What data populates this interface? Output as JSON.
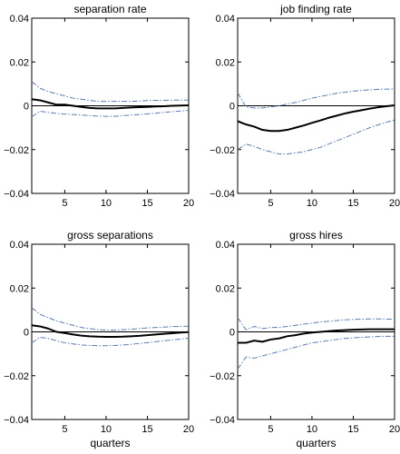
{
  "chart_data": [
    {
      "type": "line",
      "title": "separation rate",
      "xlabel": "",
      "ylabel": "",
      "xlim": [
        1,
        20
      ],
      "ylim": [
        -0.04,
        0.04
      ],
      "xticks": [
        5,
        10,
        15,
        20
      ],
      "yticks": [
        -0.04,
        -0.02,
        0,
        0.02,
        0.04
      ],
      "ytick_labels": [
        "−0.04",
        "−0.02",
        "0",
        "0.02",
        "0.04"
      ],
      "zero_line": true,
      "x": [
        1,
        2,
        3,
        4,
        5,
        6,
        7,
        8,
        9,
        10,
        11,
        12,
        13,
        14,
        15,
        16,
        17,
        18,
        19,
        20
      ],
      "series": [
        {
          "role": "estimate",
          "values": [
            0.003,
            0.0025,
            0.0015,
            0.0005,
            0.0005,
            0.0,
            -0.0005,
            -0.001,
            -0.0012,
            -0.0012,
            -0.0012,
            -0.001,
            -0.0008,
            -0.0006,
            -0.0005,
            -0.0003,
            -0.0002,
            0.0,
            0.0001,
            0.0002
          ]
        },
        {
          "role": "upper-band",
          "values": [
            0.011,
            0.008,
            0.0065,
            0.0055,
            0.0045,
            0.0035,
            0.003,
            0.0025,
            0.002,
            0.002,
            0.002,
            0.002,
            0.002,
            0.0022,
            0.0024,
            0.0025,
            0.0025,
            0.0026,
            0.0026,
            0.0026
          ]
        },
        {
          "role": "lower-band",
          "values": [
            -0.005,
            -0.0025,
            -0.003,
            -0.0035,
            -0.0038,
            -0.004,
            -0.0042,
            -0.0045,
            -0.0047,
            -0.0048,
            -0.0048,
            -0.0045,
            -0.0043,
            -0.004,
            -0.0037,
            -0.0034,
            -0.003,
            -0.0027,
            -0.0024,
            -0.0021
          ]
        }
      ]
    },
    {
      "type": "line",
      "title": "job finding rate",
      "xlabel": "",
      "ylabel": "",
      "xlim": [
        1,
        20
      ],
      "ylim": [
        -0.04,
        0.04
      ],
      "xticks": [
        5,
        10,
        15,
        20
      ],
      "yticks": [
        -0.04,
        -0.02,
        0,
        0.02,
        0.04
      ],
      "ytick_labels": [
        "−0.04",
        "−0.02",
        "0",
        "0.02",
        "0.04"
      ],
      "zero_line": true,
      "x": [
        1,
        2,
        3,
        4,
        5,
        6,
        7,
        8,
        9,
        10,
        11,
        12,
        13,
        14,
        15,
        16,
        17,
        18,
        19,
        20
      ],
      "series": [
        {
          "role": "estimate",
          "values": [
            -0.007,
            -0.0085,
            -0.0095,
            -0.011,
            -0.0115,
            -0.0115,
            -0.011,
            -0.01,
            -0.009,
            -0.0078,
            -0.0067,
            -0.0055,
            -0.0045,
            -0.0035,
            -0.0027,
            -0.002,
            -0.0013,
            -0.0007,
            -0.0002,
            0.0002
          ]
        },
        {
          "role": "upper-band",
          "values": [
            0.006,
            -0.0005,
            -0.001,
            -0.001,
            -0.0005,
            0.0,
            0.0008,
            0.0015,
            0.0025,
            0.0035,
            0.0042,
            0.005,
            0.0057,
            0.0062,
            0.0067,
            0.007,
            0.0073,
            0.0075,
            0.0076,
            0.0077
          ]
        },
        {
          "role": "lower-band",
          "values": [
            -0.02,
            -0.0175,
            -0.0185,
            -0.02,
            -0.021,
            -0.022,
            -0.022,
            -0.0215,
            -0.021,
            -0.02,
            -0.019,
            -0.0175,
            -0.016,
            -0.0145,
            -0.013,
            -0.0115,
            -0.01,
            -0.0087,
            -0.0075,
            -0.0065
          ]
        }
      ]
    },
    {
      "type": "line",
      "title": "gross separations",
      "xlabel": "quarters",
      "ylabel": "",
      "xlim": [
        1,
        20
      ],
      "ylim": [
        -0.04,
        0.04
      ],
      "xticks": [
        5,
        10,
        15,
        20
      ],
      "yticks": [
        -0.04,
        -0.02,
        0,
        0.02,
        0.04
      ],
      "ytick_labels": [
        "−0.04",
        "−0.02",
        "0",
        "0.02",
        "0.04"
      ],
      "zero_line": true,
      "x": [
        1,
        2,
        3,
        4,
        5,
        6,
        7,
        8,
        9,
        10,
        11,
        12,
        13,
        14,
        15,
        16,
        17,
        18,
        19,
        20
      ],
      "series": [
        {
          "role": "estimate",
          "values": [
            0.003,
            0.0025,
            0.0015,
            0.0,
            -0.0005,
            -0.0012,
            -0.0017,
            -0.002,
            -0.0022,
            -0.0023,
            -0.0023,
            -0.0022,
            -0.002,
            -0.0018,
            -0.0015,
            -0.0012,
            -0.0009,
            -0.0006,
            -0.0003,
            -0.0001
          ]
        },
        {
          "role": "upper-band",
          "values": [
            0.011,
            0.008,
            0.0065,
            0.005,
            0.004,
            0.003,
            0.002,
            0.0015,
            0.001,
            0.0008,
            0.0008,
            0.001,
            0.0012,
            0.0015,
            0.0018,
            0.002,
            0.0022,
            0.0024,
            0.0025,
            0.0026
          ]
        },
        {
          "role": "lower-band",
          "values": [
            -0.005,
            -0.0025,
            -0.003,
            -0.004,
            -0.005,
            -0.0055,
            -0.006,
            -0.0062,
            -0.0063,
            -0.0063,
            -0.0062,
            -0.006,
            -0.0057,
            -0.0053,
            -0.0049,
            -0.0045,
            -0.0041,
            -0.0037,
            -0.0033,
            -0.0029
          ]
        }
      ]
    },
    {
      "type": "line",
      "title": "gross hires",
      "xlabel": "quarters",
      "ylabel": "",
      "xlim": [
        1,
        20
      ],
      "ylim": [
        -0.04,
        0.04
      ],
      "xticks": [
        5,
        10,
        15,
        20
      ],
      "yticks": [
        -0.04,
        -0.02,
        0,
        0.02,
        0.04
      ],
      "ytick_labels": [
        "−0.04",
        "−0.02",
        "0",
        "0.02",
        "0.04"
      ],
      "zero_line": true,
      "x": [
        1,
        2,
        3,
        4,
        5,
        6,
        7,
        8,
        9,
        10,
        11,
        12,
        13,
        14,
        15,
        16,
        17,
        18,
        19,
        20
      ],
      "series": [
        {
          "role": "estimate",
          "values": [
            -0.005,
            -0.005,
            -0.004,
            -0.0045,
            -0.0035,
            -0.003,
            -0.002,
            -0.0015,
            -0.0008,
            -0.0003,
            0.0,
            0.0003,
            0.0006,
            0.0008,
            0.001,
            0.0011,
            0.0012,
            0.0012,
            0.0012,
            0.0012
          ]
        },
        {
          "role": "upper-band",
          "values": [
            0.0065,
            0.001,
            0.0025,
            0.0015,
            0.002,
            0.002,
            0.0025,
            0.003,
            0.0035,
            0.004,
            0.0045,
            0.0048,
            0.0052,
            0.0055,
            0.0057,
            0.0058,
            0.0059,
            0.0059,
            0.0058,
            0.0058
          ]
        },
        {
          "role": "lower-band",
          "values": [
            -0.017,
            -0.0115,
            -0.012,
            -0.011,
            -0.01,
            -0.009,
            -0.008,
            -0.007,
            -0.006,
            -0.005,
            -0.0045,
            -0.004,
            -0.0035,
            -0.003,
            -0.0027,
            -0.0025,
            -0.0023,
            -0.0021,
            -0.002,
            -0.002
          ]
        }
      ]
    }
  ],
  "colors": {
    "estimate": "#000000",
    "band": "#5b7bb5",
    "zero_line": "#000000",
    "frame": "#000000"
  }
}
